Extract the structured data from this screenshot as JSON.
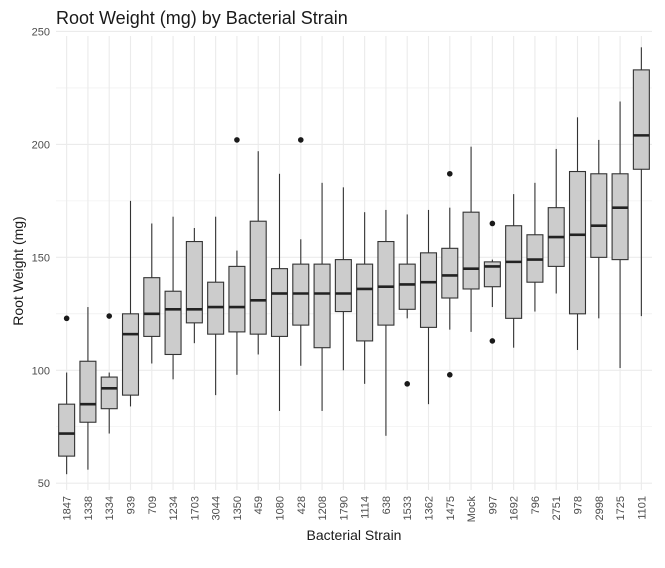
{
  "chart_data": {
    "type": "boxplot",
    "title": "Root Weight (mg) by Bacterial Strain",
    "xlabel": "Bacterial Strain",
    "ylabel": "Root Weight (mg)",
    "ylim": [
      47,
      248
    ],
    "yticks": [
      50,
      100,
      150,
      200,
      250
    ],
    "grid": true,
    "box_fill": "#cccccc",
    "box_stroke": "#333333",
    "grid_color": "#ebebeb",
    "boxes": [
      {
        "category": "1847",
        "whisker_low": 54,
        "q1": 62,
        "median": 72,
        "q3": 85,
        "whisker_high": 99,
        "outliers": [
          123
        ]
      },
      {
        "category": "1338",
        "whisker_low": 56,
        "q1": 77,
        "median": 85,
        "q3": 104,
        "whisker_high": 128,
        "outliers": []
      },
      {
        "category": "1334",
        "whisker_low": 72,
        "q1": 83,
        "median": 92,
        "q3": 97,
        "whisker_high": 99,
        "outliers": [
          124
        ]
      },
      {
        "category": "939",
        "whisker_low": 84,
        "q1": 89,
        "median": 116,
        "q3": 125,
        "whisker_high": 175,
        "outliers": []
      },
      {
        "category": "709",
        "whisker_low": 103,
        "q1": 115,
        "median": 125,
        "q3": 141,
        "whisker_high": 165,
        "outliers": []
      },
      {
        "category": "1234",
        "whisker_low": 96,
        "q1": 107,
        "median": 127,
        "q3": 135,
        "whisker_high": 168,
        "outliers": []
      },
      {
        "category": "1703",
        "whisker_low": 112,
        "q1": 121,
        "median": 127,
        "q3": 157,
        "whisker_high": 163,
        "outliers": []
      },
      {
        "category": "3044",
        "whisker_low": 89,
        "q1": 116,
        "median": 128,
        "q3": 139,
        "whisker_high": 168,
        "outliers": []
      },
      {
        "category": "1350",
        "whisker_low": 98,
        "q1": 117,
        "median": 128,
        "q3": 146,
        "whisker_high": 153,
        "outliers": [
          202
        ]
      },
      {
        "category": "459",
        "whisker_low": 107,
        "q1": 116,
        "median": 131,
        "q3": 166,
        "whisker_high": 197,
        "outliers": []
      },
      {
        "category": "1080",
        "whisker_low": 82,
        "q1": 115,
        "median": 134,
        "q3": 145,
        "whisker_high": 187,
        "outliers": []
      },
      {
        "category": "428",
        "whisker_low": 102,
        "q1": 120,
        "median": 134,
        "q3": 147,
        "whisker_high": 158,
        "outliers": [
          202
        ]
      },
      {
        "category": "1208",
        "whisker_low": 82,
        "q1": 110,
        "median": 134,
        "q3": 147,
        "whisker_high": 183,
        "outliers": []
      },
      {
        "category": "1790",
        "whisker_low": 100,
        "q1": 126,
        "median": 134,
        "q3": 149,
        "whisker_high": 181,
        "outliers": []
      },
      {
        "category": "1114",
        "whisker_low": 94,
        "q1": 113,
        "median": 136,
        "q3": 147,
        "whisker_high": 170,
        "outliers": []
      },
      {
        "category": "638",
        "whisker_low": 71,
        "q1": 120,
        "median": 137,
        "q3": 157,
        "whisker_high": 171,
        "outliers": []
      },
      {
        "category": "1533",
        "whisker_low": 123,
        "q1": 127,
        "median": 138,
        "q3": 147,
        "whisker_high": 169,
        "outliers": [
          94
        ]
      },
      {
        "category": "1362",
        "whisker_low": 85,
        "q1": 119,
        "median": 139,
        "q3": 152,
        "whisker_high": 171,
        "outliers": []
      },
      {
        "category": "1475",
        "whisker_low": 118,
        "q1": 132,
        "median": 142,
        "q3": 154,
        "whisker_high": 172,
        "outliers": [
          98,
          187
        ]
      },
      {
        "category": "Mock",
        "whisker_low": 117,
        "q1": 136,
        "median": 145,
        "q3": 170,
        "whisker_high": 199,
        "outliers": []
      },
      {
        "category": "997",
        "whisker_low": 128,
        "q1": 137,
        "median": 146,
        "q3": 148,
        "whisker_high": 149,
        "outliers": [
          113,
          165
        ]
      },
      {
        "category": "1692",
        "whisker_low": 110,
        "q1": 123,
        "median": 148,
        "q3": 164,
        "whisker_high": 178,
        "outliers": []
      },
      {
        "category": "796",
        "whisker_low": 126,
        "q1": 139,
        "median": 149,
        "q3": 160,
        "whisker_high": 183,
        "outliers": []
      },
      {
        "category": "2751",
        "whisker_low": 134,
        "q1": 146,
        "median": 159,
        "q3": 172,
        "whisker_high": 198,
        "outliers": []
      },
      {
        "category": "978",
        "whisker_low": 109,
        "q1": 125,
        "median": 160,
        "q3": 188,
        "whisker_high": 212,
        "outliers": []
      },
      {
        "category": "2998",
        "whisker_low": 123,
        "q1": 150,
        "median": 164,
        "q3": 187,
        "whisker_high": 202,
        "outliers": []
      },
      {
        "category": "1725",
        "whisker_low": 101,
        "q1": 149,
        "median": 172,
        "q3": 187,
        "whisker_high": 219,
        "outliers": []
      },
      {
        "category": "1101",
        "whisker_low": 124,
        "q1": 189,
        "median": 204,
        "q3": 233,
        "whisker_high": 243,
        "outliers": []
      }
    ]
  }
}
